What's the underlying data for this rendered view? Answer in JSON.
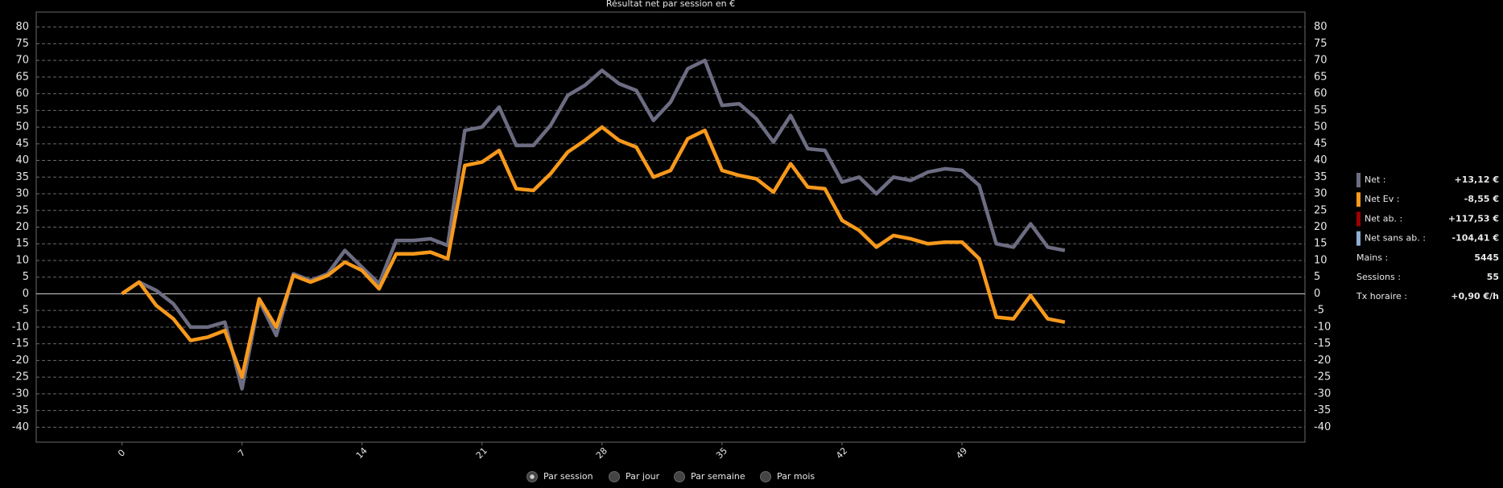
{
  "chart_data": {
    "type": "line",
    "title": "Résultat net par session en €",
    "x": [
      0,
      1,
      2,
      3,
      4,
      5,
      6,
      7,
      8,
      9,
      10,
      11,
      12,
      13,
      14,
      15,
      16,
      17,
      18,
      19,
      20,
      21,
      22,
      23,
      24,
      25,
      26,
      27,
      28,
      29,
      30,
      31,
      32,
      33,
      34,
      35,
      36,
      37,
      38,
      39,
      40,
      41,
      42,
      43,
      44,
      45,
      46,
      47,
      48,
      49,
      50,
      51,
      52,
      53,
      54,
      55
    ],
    "xlim": [
      -5,
      69
    ],
    "xticks": [
      0,
      7,
      14,
      21,
      28,
      35,
      42,
      49
    ],
    "ylim": [
      -44.5,
      84.5
    ],
    "yticks": [
      -40,
      -35,
      -30,
      -25,
      -20,
      -15,
      -10,
      -5,
      0,
      5,
      10,
      15,
      20,
      25,
      30,
      35,
      40,
      45,
      50,
      55,
      60,
      65,
      70,
      75,
      80
    ],
    "grid": true,
    "series": [
      {
        "name": "Net :",
        "color": "#6c6c82",
        "legend_value": "+13,12 €",
        "legend_value_color": "#9fc0ea",
        "values": [
          0,
          3.5,
          1,
          -3,
          -10,
          -10,
          -8.5,
          -28.5,
          -2,
          -12.5,
          6,
          4,
          6,
          13,
          8,
          3,
          16,
          16,
          16.5,
          14.5,
          49,
          50,
          56,
          44.5,
          44.5,
          50.5,
          59.5,
          62.5,
          67,
          63,
          61,
          52,
          57.5,
          67.5,
          70,
          56.5,
          57,
          52.5,
          45.5,
          53.5,
          43.5,
          43,
          33.5,
          35,
          30,
          35,
          34,
          36.5,
          37.5,
          37,
          32.5,
          15,
          14,
          21,
          14,
          13
        ]
      },
      {
        "name": "Net Ev :",
        "color": "#f7991c",
        "legend_value": "-8,55 €",
        "legend_value_color": "#e01818",
        "values": [
          0,
          3.5,
          -3.5,
          -7.5,
          -14,
          -13,
          -11,
          -25,
          -1.5,
          -10,
          5.5,
          3.5,
          5.5,
          9.5,
          7,
          1.5,
          12,
          12,
          12.5,
          10.5,
          38.5,
          39.5,
          43,
          31.5,
          31,
          36,
          42.5,
          46,
          50,
          46,
          44,
          35,
          37,
          46.5,
          49,
          37,
          35.5,
          34.5,
          30.5,
          39,
          32,
          31.5,
          22,
          19,
          14,
          17.5,
          16.5,
          15,
          15.5,
          15.5,
          10.5,
          -7,
          -7.5,
          -0.5,
          -7.5,
          -8.5
        ]
      }
    ],
    "legend_extra": [
      {
        "label": "Net ab. :",
        "value": "+117,53 €",
        "swatch": "#a00000",
        "value_color": "#ffffff"
      },
      {
        "label": "Net sans ab. :",
        "value": "-104,41 €",
        "swatch": "#90aed4",
        "value_color": "#e01818"
      },
      {
        "label": "Mains :",
        "value": "5445",
        "value_color": "#e8e8e8"
      },
      {
        "label": "Sessions :",
        "value": "55",
        "value_color": "#e8e8e8"
      },
      {
        "label": "Tx horaire :",
        "value": "+0,90 €/h",
        "value_color": "#e8e8e8"
      }
    ],
    "views": [
      {
        "label": "Par session",
        "selected": true
      },
      {
        "label": "Par jour",
        "selected": false
      },
      {
        "label": "Par semaine",
        "selected": false
      },
      {
        "label": "Par mois",
        "selected": false
      }
    ]
  }
}
